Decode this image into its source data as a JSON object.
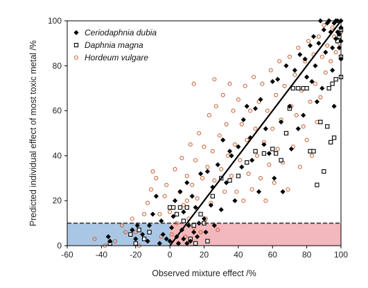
{
  "chart_data": {
    "type": "scatter",
    "xlabel": "Observed mixture effect /%",
    "ylabel": "Predicted individual effect of most toxic metal /%",
    "xlim": [
      -60,
      100
    ],
    "ylim": [
      0,
      100
    ],
    "xticks": [
      "-60",
      "-40",
      "-20",
      "0",
      "20",
      "40",
      "60",
      "80",
      "100"
    ],
    "yticks": [
      "0",
      "20",
      "40",
      "60",
      "80",
      "100"
    ],
    "grid": false,
    "legend_position": "top-left",
    "threshold_y": 10,
    "regions": [
      {
        "name": "blue-region",
        "x": [
          -60,
          0
        ],
        "y": [
          0,
          10
        ],
        "color": "#a9c7e4"
      },
      {
        "name": "pink-region",
        "x": [
          0,
          100
        ],
        "y": [
          0,
          10
        ],
        "color": "#f2b8bd"
      }
    ],
    "reference_line": {
      "x": [
        0,
        100
      ],
      "y": [
        0,
        100
      ],
      "color": "#000000"
    },
    "series": [
      {
        "name": "Ceriodaphnia dubia",
        "marker": "diamond-filled",
        "color": "#000000",
        "points": [
          [
            -36,
            4
          ],
          [
            -35,
            2
          ],
          [
            -22,
            7
          ],
          [
            -20,
            3
          ],
          [
            -19,
            9
          ],
          [
            -16,
            5
          ],
          [
            -13,
            2
          ],
          [
            -12,
            9
          ],
          [
            -10,
            14
          ],
          [
            -8,
            22
          ],
          [
            -6,
            1
          ],
          [
            -5,
            11
          ],
          [
            -4,
            5
          ],
          [
            -2,
            3
          ],
          [
            0,
            2
          ],
          [
            1,
            8
          ],
          [
            2,
            13
          ],
          [
            3,
            20
          ],
          [
            4,
            4
          ],
          [
            5,
            1
          ],
          [
            6,
            24
          ],
          [
            7,
            7
          ],
          [
            8,
            3
          ],
          [
            8,
            15
          ],
          [
            10,
            1
          ],
          [
            10,
            28
          ],
          [
            11,
            9
          ],
          [
            12,
            2
          ],
          [
            13,
            22
          ],
          [
            14,
            6
          ],
          [
            15,
            17
          ],
          [
            16,
            4
          ],
          [
            17,
            10
          ],
          [
            18,
            32
          ],
          [
            20,
            12
          ],
          [
            21,
            6
          ],
          [
            22,
            33
          ],
          [
            24,
            18
          ],
          [
            25,
            26
          ],
          [
            26,
            9
          ],
          [
            28,
            36
          ],
          [
            30,
            16
          ],
          [
            31,
            47
          ],
          [
            33,
            28
          ],
          [
            35,
            42
          ],
          [
            36,
            40
          ],
          [
            38,
            20
          ],
          [
            40,
            44
          ],
          [
            42,
            35
          ],
          [
            43,
            56
          ],
          [
            45,
            62
          ],
          [
            47,
            48
          ],
          [
            48,
            38
          ],
          [
            50,
            61
          ],
          [
            52,
            24
          ],
          [
            53,
            65
          ],
          [
            55,
            45
          ],
          [
            56,
            52
          ],
          [
            58,
            41
          ],
          [
            60,
            73
          ],
          [
            61,
            30
          ],
          [
            63,
            74
          ],
          [
            65,
            55
          ],
          [
            66,
            24
          ],
          [
            68,
            80
          ],
          [
            70,
            62
          ],
          [
            71,
            43
          ],
          [
            73,
            78
          ],
          [
            75,
            52
          ],
          [
            76,
            85
          ],
          [
            78,
            58
          ],
          [
            79,
            83
          ],
          [
            80,
            75
          ],
          [
            82,
            89
          ],
          [
            83,
            73
          ],
          [
            84,
            93
          ],
          [
            85,
            80
          ],
          [
            86,
            64
          ],
          [
            87,
            90
          ],
          [
            88,
            100
          ],
          [
            89,
            70
          ],
          [
            90,
            96
          ],
          [
            91,
            86
          ],
          [
            92,
            99
          ],
          [
            93,
            100
          ],
          [
            94,
            95
          ],
          [
            95,
            78
          ],
          [
            95,
            88
          ],
          [
            96,
            99
          ],
          [
            96,
            62
          ],
          [
            97,
            100
          ],
          [
            97,
            92
          ],
          [
            98,
            95
          ],
          [
            98,
            100
          ],
          [
            99,
            94
          ],
          [
            99,
            88
          ],
          [
            100,
            100
          ],
          [
            100,
            97
          ],
          [
            100,
            91
          ],
          [
            100,
            83
          ]
        ]
      },
      {
        "name": "Daphnia magna",
        "marker": "square-open",
        "color": "#000000",
        "points": [
          [
            -35,
            1
          ],
          [
            -23,
            5
          ],
          [
            -20,
            1
          ],
          [
            -18,
            7
          ],
          [
            -15,
            3
          ],
          [
            -12,
            6
          ],
          [
            0,
            17
          ],
          [
            2,
            17
          ],
          [
            4,
            14
          ],
          [
            6,
            17
          ],
          [
            8,
            11
          ],
          [
            10,
            17
          ],
          [
            12,
            3
          ],
          [
            14,
            9
          ],
          [
            15,
            1
          ],
          [
            18,
            14
          ],
          [
            20,
            10
          ],
          [
            22,
            2
          ],
          [
            25,
            22
          ],
          [
            30,
            30
          ],
          [
            35,
            29
          ],
          [
            40,
            31
          ],
          [
            45,
            37
          ],
          [
            50,
            42
          ],
          [
            55,
            41
          ],
          [
            60,
            43
          ],
          [
            62,
            41
          ],
          [
            65,
            38
          ],
          [
            68,
            50
          ],
          [
            70,
            61
          ],
          [
            72,
            70
          ],
          [
            75,
            70
          ],
          [
            78,
            70
          ],
          [
            80,
            70
          ],
          [
            82,
            42
          ],
          [
            84,
            42
          ],
          [
            86,
            27
          ],
          [
            88,
            55
          ],
          [
            90,
            33
          ],
          [
            92,
            53
          ],
          [
            93,
            70
          ],
          [
            94,
            46
          ],
          [
            95,
            72
          ],
          [
            96,
            48
          ],
          [
            97,
            74
          ],
          [
            98,
            91
          ],
          [
            99,
            93
          ],
          [
            100,
            96
          ],
          [
            100,
            84
          ],
          [
            100,
            75
          ]
        ]
      },
      {
        "name": "Hordeum vulgare",
        "marker": "circle-open",
        "color": "#c8673a",
        "points": [
          [
            -38,
            0
          ],
          [
            -32,
            2
          ],
          [
            -26,
            6
          ],
          [
            -22,
            12
          ],
          [
            -20,
            6
          ],
          [
            -18,
            0
          ],
          [
            -15,
            14
          ],
          [
            -13,
            19
          ],
          [
            -11,
            25
          ],
          [
            -10,
            33
          ],
          [
            -8,
            30
          ],
          [
            -6,
            14
          ],
          [
            -5,
            4
          ],
          [
            -3,
            22
          ],
          [
            -2,
            27
          ],
          [
            0,
            15
          ],
          [
            1,
            5
          ],
          [
            3,
            34
          ],
          [
            4,
            10
          ],
          [
            5,
            1
          ],
          [
            6,
            24
          ],
          [
            7,
            39
          ],
          [
            8,
            18
          ],
          [
            9,
            4
          ],
          [
            10,
            31
          ],
          [
            11,
            12
          ],
          [
            12,
            45
          ],
          [
            13,
            27
          ],
          [
            14,
            8
          ],
          [
            15,
            38
          ],
          [
            16,
            21
          ],
          [
            17,
            50
          ],
          [
            18,
            6
          ],
          [
            19,
            30
          ],
          [
            20,
            44
          ],
          [
            21,
            12
          ],
          [
            22,
            35
          ],
          [
            23,
            58
          ],
          [
            24,
            19
          ],
          [
            25,
            42
          ],
          [
            26,
            29
          ],
          [
            27,
            62
          ],
          [
            28,
            7
          ],
          [
            29,
            49
          ],
          [
            30,
            34
          ],
          [
            31,
            67
          ],
          [
            32,
            24
          ],
          [
            33,
            54
          ],
          [
            34,
            40
          ],
          [
            35,
            72
          ],
          [
            36,
            31
          ],
          [
            37,
            60
          ],
          [
            38,
            45
          ],
          [
            39,
            24
          ],
          [
            40,
            65
          ],
          [
            41,
            38
          ],
          [
            42,
            54
          ],
          [
            43,
            20
          ],
          [
            44,
            71
          ],
          [
            45,
            47
          ],
          [
            46,
            32
          ],
          [
            47,
            60
          ],
          [
            48,
            25
          ],
          [
            49,
            75
          ],
          [
            50,
            52
          ],
          [
            51,
            40
          ],
          [
            52,
            64
          ],
          [
            53,
            30
          ],
          [
            54,
            72
          ],
          [
            55,
            46
          ],
          [
            56,
            20
          ],
          [
            57,
            60
          ],
          [
            58,
            36
          ],
          [
            59,
            78
          ],
          [
            60,
            52
          ],
          [
            61,
            28
          ],
          [
            62,
            67
          ],
          [
            63,
            43
          ],
          [
            64,
            82
          ],
          [
            65,
            56
          ],
          [
            66,
            37
          ],
          [
            67,
            71
          ],
          [
            68,
            50
          ],
          [
            69,
            25
          ],
          [
            70,
            84
          ],
          [
            71,
            62
          ],
          [
            72,
            44
          ],
          [
            73,
            76
          ],
          [
            74,
            58
          ],
          [
            75,
            88
          ],
          [
            76,
            35
          ],
          [
            77,
            69
          ],
          [
            78,
            53
          ],
          [
            79,
            82
          ],
          [
            80,
            47
          ],
          [
            81,
            91
          ],
          [
            82,
            64
          ],
          [
            83,
            40
          ],
          [
            84,
            85
          ],
          [
            85,
            72
          ],
          [
            86,
            55
          ],
          [
            87,
            93
          ],
          [
            88,
            66
          ],
          [
            89,
            84
          ],
          [
            90,
            98
          ],
          [
            91,
            77
          ],
          [
            92,
            89
          ],
          [
            93,
            100
          ],
          [
            94,
            82
          ],
          [
            95,
            97
          ],
          [
            96,
            93
          ],
          [
            97,
            86
          ],
          [
            98,
            100
          ],
          [
            99,
            90
          ],
          [
            100,
            95
          ],
          [
            -44,
            3
          ],
          [
            -28,
            9
          ],
          [
            14,
            72
          ],
          [
            26,
            74
          ],
          [
            10,
            20
          ]
        ]
      }
    ]
  }
}
